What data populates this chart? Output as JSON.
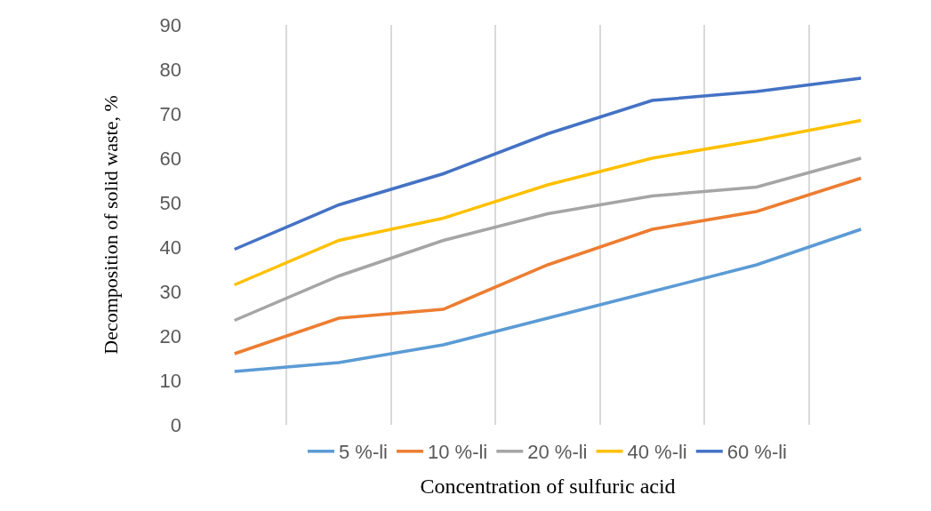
{
  "chart_data": {
    "type": "line",
    "xlabel": "Concentration of sulfuric acid",
    "ylabel": "Decomposition of solid waste, %",
    "categories": [
      null,
      null,
      null,
      null,
      null,
      null,
      null
    ],
    "series": [
      {
        "name": "5 %-li",
        "color": "#5b9bd5",
        "values": [
          12,
          14,
          18,
          24,
          30,
          36,
          44
        ]
      },
      {
        "name": "10 %-li",
        "color": "#ed7d31",
        "values": [
          16,
          24,
          26,
          36,
          44,
          48,
          55.5
        ]
      },
      {
        "name": "20 %-li",
        "color": "#a5a5a5",
        "values": [
          23.5,
          33.5,
          41.5,
          47.5,
          51.5,
          53.5,
          60
        ]
      },
      {
        "name": "40 %-li",
        "color": "#ffc000",
        "values": [
          31.5,
          41.5,
          46.5,
          54,
          60,
          64,
          68.5
        ]
      },
      {
        "name": "60 %-li",
        "color": "#4472c4",
        "values": [
          39.5,
          49.5,
          56.5,
          65.5,
          73,
          75,
          78
        ]
      }
    ],
    "ylim": [
      0,
      90
    ],
    "yticks": [
      0,
      10,
      20,
      30,
      40,
      50,
      60,
      70,
      80,
      90
    ],
    "grid": "x",
    "legend": "bottom",
    "marker": "none",
    "line_style": "solid"
  }
}
